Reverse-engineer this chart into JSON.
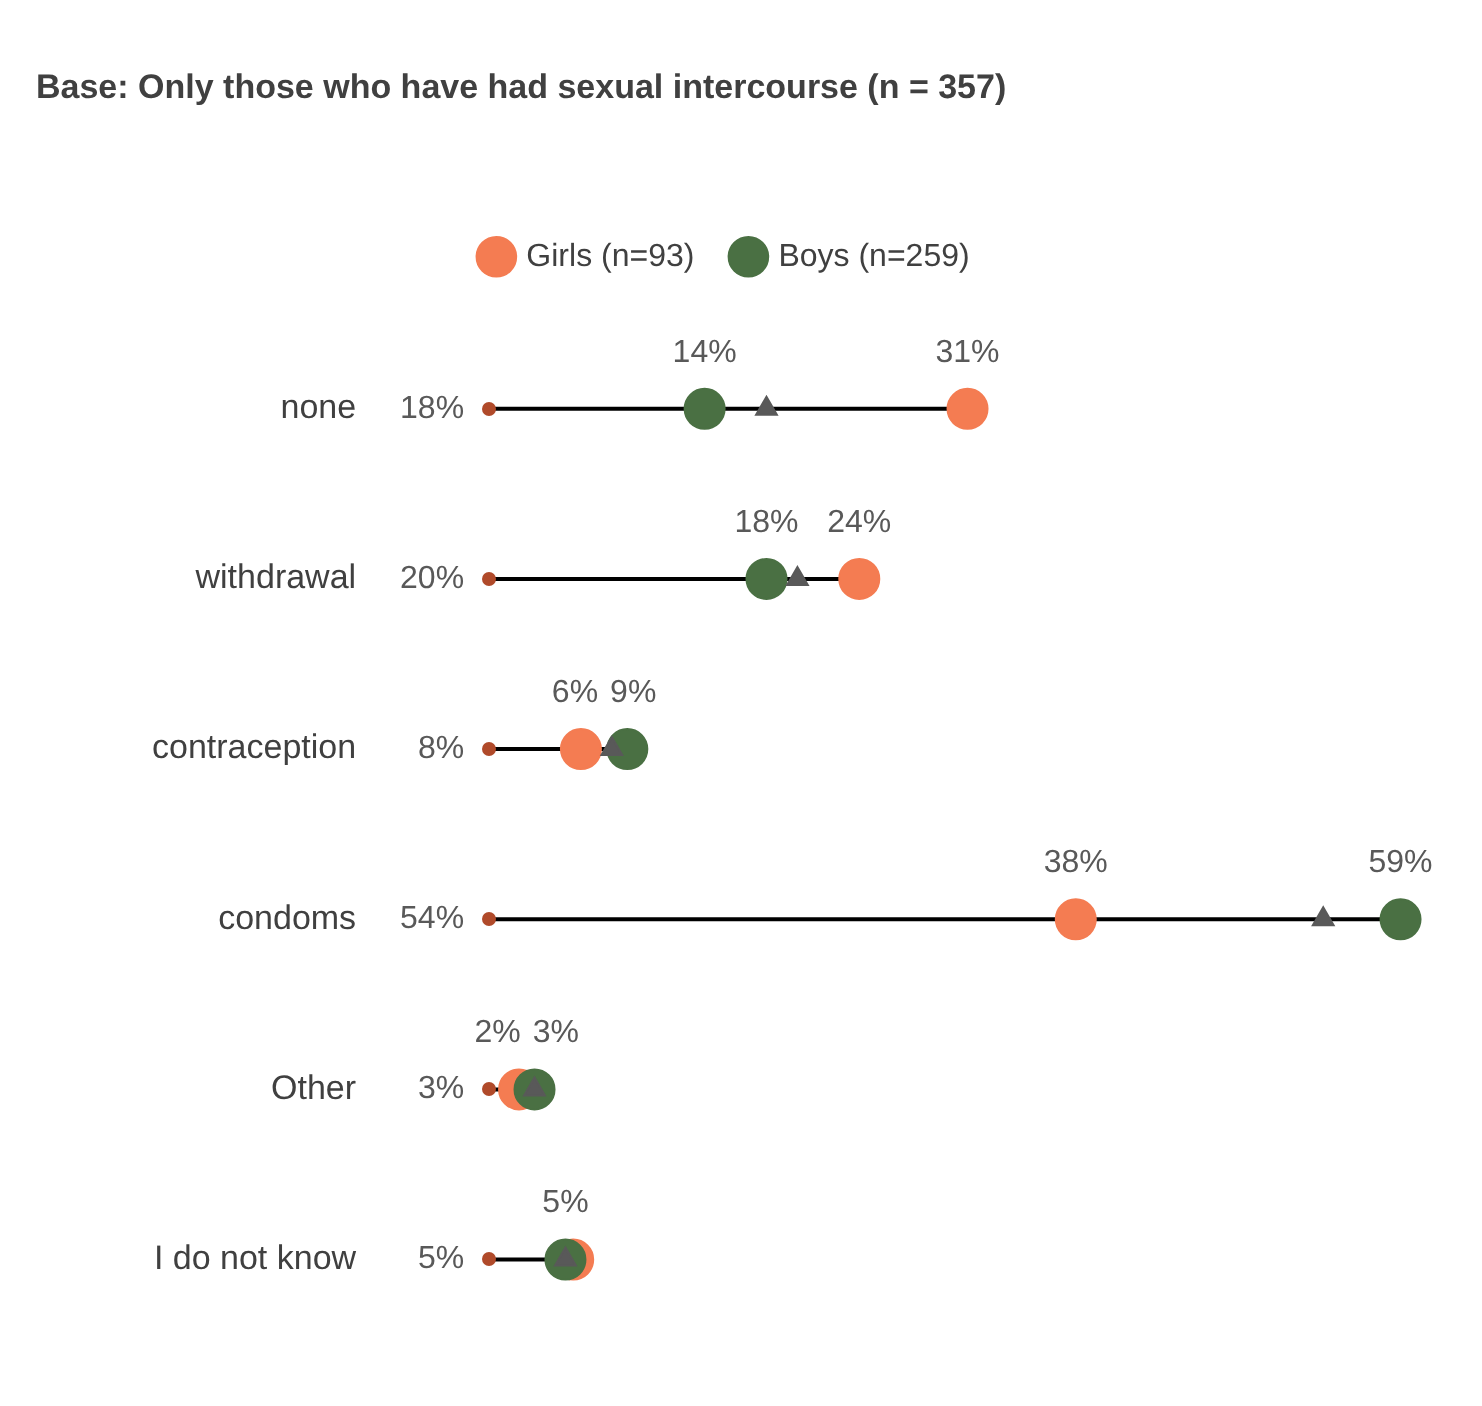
{
  "chart_data": {
    "type": "scatter",
    "title": "Base: Only those who have had sexual intercourse (n = 357)",
    "orientation": "horizontal",
    "categories": [
      "none",
      "withdrawal",
      "contraception",
      "condoms",
      "Other",
      "I do not know"
    ],
    "marker": "circle",
    "legend": "top",
    "series": [
      {
        "name": "Girls (n=93)",
        "color": "#f47c52",
        "values": [
          31,
          24,
          6,
          38,
          2,
          5.5
        ],
        "value_labels": [
          "31%",
          "24%",
          "6%",
          "38%",
          "2%",
          null
        ]
      },
      {
        "name": "Boys (n=259)",
        "color": "#4a7043",
        "values": [
          14,
          18,
          9,
          59,
          3,
          5
        ],
        "value_labels": [
          "14%",
          "18%",
          "9%",
          "59%",
          "3%",
          "5%"
        ]
      },
      {
        "color": "#595959",
        "marker": "triangle",
        "values": [
          18,
          20,
          8,
          54,
          3,
          5
        ],
        "value_labels": [
          "18%",
          "20%",
          "8%",
          "54%",
          "3%",
          "5%"
        ]
      }
    ]
  }
}
